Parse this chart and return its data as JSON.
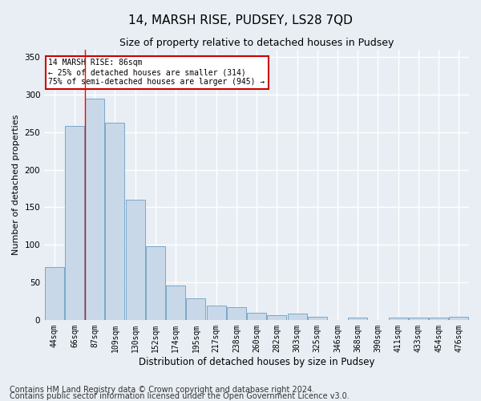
{
  "title": "14, MARSH RISE, PUDSEY, LS28 7QD",
  "subtitle": "Size of property relative to detached houses in Pudsey",
  "xlabel": "Distribution of detached houses by size in Pudsey",
  "ylabel": "Number of detached properties",
  "categories": [
    "44sqm",
    "66sqm",
    "87sqm",
    "109sqm",
    "130sqm",
    "152sqm",
    "174sqm",
    "195sqm",
    "217sqm",
    "238sqm",
    "260sqm",
    "282sqm",
    "303sqm",
    "325sqm",
    "346sqm",
    "368sqm",
    "390sqm",
    "411sqm",
    "433sqm",
    "454sqm",
    "476sqm"
  ],
  "values": [
    70,
    258,
    295,
    263,
    160,
    98,
    46,
    29,
    19,
    17,
    9,
    6,
    8,
    4,
    0,
    3,
    0,
    3,
    3,
    3,
    4
  ],
  "bar_color": "#c8d8e8",
  "bar_edge_color": "#7aa8c8",
  "ylim": [
    0,
    360
  ],
  "yticks": [
    0,
    50,
    100,
    150,
    200,
    250,
    300,
    350
  ],
  "annotation_title": "14 MARSH RISE: 86sqm",
  "annotation_line1": "← 25% of detached houses are smaller (314)",
  "annotation_line2": "75% of semi-detached houses are larger (945) →",
  "annotation_box_color": "#ffffff",
  "annotation_box_edge_color": "#cc0000",
  "footnote1": "Contains HM Land Registry data © Crown copyright and database right 2024.",
  "footnote2": "Contains public sector information licensed under the Open Government Licence v3.0.",
  "bg_color": "#e8eef4",
  "plot_bg_color": "#e8eef4",
  "grid_color": "#ffffff",
  "title_fontsize": 11,
  "subtitle_fontsize": 9,
  "footnote_fontsize": 7
}
